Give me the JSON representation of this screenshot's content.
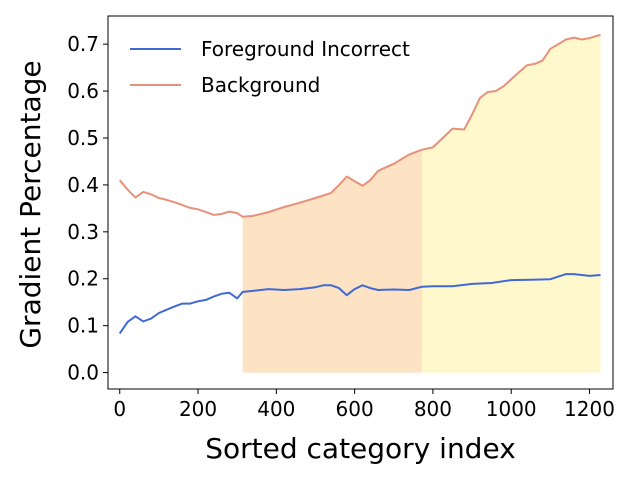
{
  "chart_data": {
    "type": "line",
    "xlabel": "Sorted category index",
    "ylabel": "Gradient Percentage",
    "xlim": [
      -30,
      1260
    ],
    "ylim": [
      -0.035,
      0.76
    ],
    "xticks": [
      0,
      200,
      400,
      600,
      800,
      1000,
      1200
    ],
    "yticks": [
      0.0,
      0.1,
      0.2,
      0.3,
      0.4,
      0.5,
      0.6,
      0.7
    ],
    "xtick_labels": [
      "0",
      "200",
      "400",
      "600",
      "800",
      "1000",
      "1200"
    ],
    "ytick_labels": [
      "0.0",
      "0.1",
      "0.2",
      "0.3",
      "0.4",
      "0.5",
      "0.6",
      "0.7"
    ],
    "grid": false,
    "legend_position": "upper-left",
    "shaded_regions": [
      {
        "x_start": 314,
        "x_end": 772,
        "color": "#fde3c4"
      },
      {
        "x_start": 772,
        "x_end": 1228,
        "color": "#fff8cc"
      }
    ],
    "series": [
      {
        "name": "Foreground Incorrect",
        "color": "#4169d6",
        "x": [
          0,
          20,
          40,
          60,
          80,
          100,
          120,
          140,
          160,
          180,
          200,
          220,
          240,
          260,
          280,
          300,
          314,
          340,
          380,
          420,
          460,
          500,
          520,
          540,
          560,
          580,
          600,
          620,
          640,
          660,
          700,
          740,
          772,
          800,
          850,
          900,
          950,
          1000,
          1050,
          1100,
          1140,
          1160,
          1200,
          1228
        ],
        "y": [
          0.083,
          0.108,
          0.12,
          0.109,
          0.115,
          0.127,
          0.134,
          0.141,
          0.147,
          0.147,
          0.152,
          0.155,
          0.162,
          0.168,
          0.17,
          0.158,
          0.172,
          0.174,
          0.178,
          0.176,
          0.178,
          0.182,
          0.186,
          0.186,
          0.18,
          0.165,
          0.178,
          0.186,
          0.18,
          0.176,
          0.177,
          0.176,
          0.183,
          0.184,
          0.184,
          0.189,
          0.191,
          0.197,
          0.198,
          0.199,
          0.21,
          0.21,
          0.206,
          0.208
        ]
      },
      {
        "name": "Background",
        "color": "#e8917a",
        "x": [
          0,
          20,
          40,
          60,
          80,
          100,
          120,
          140,
          160,
          180,
          200,
          220,
          240,
          260,
          280,
          300,
          314,
          340,
          380,
          420,
          460,
          500,
          540,
          560,
          580,
          600,
          620,
          640,
          660,
          700,
          740,
          772,
          800,
          850,
          880,
          900,
          920,
          940,
          960,
          980,
          1000,
          1020,
          1040,
          1060,
          1080,
          1100,
          1120,
          1140,
          1160,
          1180,
          1200,
          1228
        ],
        "y": [
          0.41,
          0.39,
          0.373,
          0.385,
          0.38,
          0.372,
          0.368,
          0.363,
          0.357,
          0.351,
          0.348,
          0.342,
          0.336,
          0.338,
          0.343,
          0.34,
          0.332,
          0.334,
          0.342,
          0.353,
          0.362,
          0.372,
          0.383,
          0.4,
          0.418,
          0.408,
          0.398,
          0.41,
          0.43,
          0.445,
          0.465,
          0.475,
          0.48,
          0.52,
          0.518,
          0.55,
          0.585,
          0.598,
          0.6,
          0.61,
          0.625,
          0.64,
          0.655,
          0.658,
          0.665,
          0.69,
          0.7,
          0.71,
          0.714,
          0.71,
          0.713,
          0.72
        ]
      }
    ]
  }
}
